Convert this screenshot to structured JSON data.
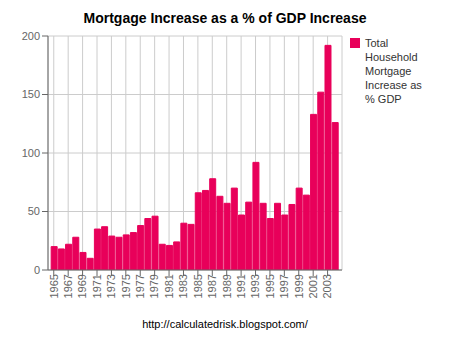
{
  "chart_data": {
    "type": "bar",
    "title": "Mortgage Increase as a % of GDP Increase",
    "x": [
      1965,
      1966,
      1967,
      1968,
      1969,
      1970,
      1971,
      1972,
      1973,
      1974,
      1975,
      1976,
      1977,
      1978,
      1979,
      1980,
      1981,
      1982,
      1983,
      1984,
      1985,
      1986,
      1987,
      1988,
      1989,
      1990,
      1991,
      1992,
      1993,
      1994,
      1995,
      1996,
      1997,
      1998,
      1999,
      2000,
      2001,
      2002,
      2003,
      2004
    ],
    "series": [
      {
        "name": "Total\nHousehold\nMortgage\nIncrease as\n% GDP",
        "color": "#E8005A",
        "values": [
          20,
          18,
          22,
          28,
          15,
          10,
          35,
          37,
          29,
          28,
          30,
          32,
          38,
          44,
          46,
          22,
          21,
          24,
          40,
          39,
          66,
          68,
          78,
          63,
          57,
          70,
          47,
          58,
          92,
          57,
          44,
          57,
          47,
          56,
          70,
          64,
          133,
          152,
          192,
          126
        ]
      }
    ],
    "xlim": [
      1964.2,
      2005.0
    ],
    "xticks": [
      1965,
      1967,
      1969,
      1971,
      1973,
      1975,
      1977,
      1979,
      1981,
      1983,
      1985,
      1987,
      1989,
      1991,
      1993,
      1995,
      1997,
      1999,
      2001,
      2003
    ],
    "ylim": [
      0,
      200
    ],
    "yticks": [
      0,
      50,
      100,
      150,
      200
    ],
    "grid": true,
    "legend": "right",
    "annotations": [
      "http://calculatedrisk.blogspot.com/"
    ]
  }
}
